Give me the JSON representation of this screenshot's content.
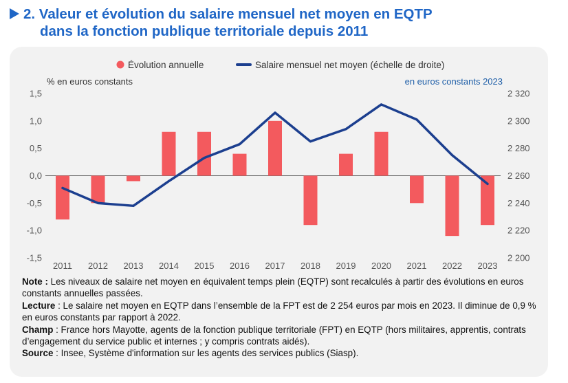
{
  "header": {
    "title_line1": "2. Valeur et évolution du salaire mensuel net moyen en EQTP",
    "title_line2": "dans la fonction publique territoriale depuis 2011"
  },
  "notes": {
    "note_label": "Note :",
    "note_text": " Les niveaux de salaire net moyen en équivalent temps plein (EQTP) sont recalculés à partir des évolutions en euros constants annuelles passées.",
    "lecture_label": "Lecture",
    "lecture_text": " : Le salaire net moyen en EQTP dans l’ensemble de la FPT est de 2 254 euros par mois en 2023. Il diminue de 0,9 % en euros constants par rapport à 2022.",
    "champ_label": "Champ",
    "champ_text": " : France hors Mayotte, agents de la fonction publique territoriale (FPT) en EQTP (hors militaires, apprentis, contrats d’engagement du service public et internes ; y compris contrats aidés).",
    "source_label": "Source",
    "source_text": " : Insee, Système d'information sur les agents des services publics (Siasp)."
  },
  "chart_data": {
    "type": "bar",
    "categories": [
      "2011",
      "2012",
      "2013",
      "2014",
      "2015",
      "2016",
      "2017",
      "2018",
      "2019",
      "2020",
      "2021",
      "2022",
      "2023"
    ],
    "series": [
      {
        "name": "Évolution annuelle",
        "type": "bar",
        "axis": "left",
        "color": "#f35a5e",
        "values": [
          -0.8,
          -0.5,
          -0.1,
          0.8,
          0.8,
          0.4,
          1.0,
          -0.9,
          0.4,
          0.8,
          -0.5,
          -1.1,
          -0.9
        ]
      },
      {
        "name": "Salaire mensuel net moyen (échelle de droite)",
        "type": "line",
        "axis": "right",
        "color": "#1c3f8f",
        "values": [
          2251,
          2240,
          2238,
          2256,
          2273,
          2283,
          2306,
          2285,
          2294,
          2312,
          2301,
          2275,
          2254
        ]
      }
    ],
    "left_axis": {
      "label": "% en euros constants",
      "ylim": [
        -1.5,
        1.5
      ],
      "ticks": [
        -1.5,
        -1.0,
        -0.5,
        0.0,
        0.5,
        1.0,
        1.5
      ],
      "tick_labels": [
        "-1,5",
        "-1,0",
        "-0,5",
        "0,0",
        "0,5",
        "1,0",
        "1,5"
      ]
    },
    "right_axis": {
      "label": "en euros constants 2023",
      "ylim": [
        2200,
        2320
      ],
      "ticks": [
        2200,
        2220,
        2240,
        2260,
        2280,
        2300,
        2320
      ],
      "tick_labels": [
        "2 200",
        "2 220",
        "2 240",
        "2 260",
        "2 280",
        "2 300",
        "2 320"
      ]
    },
    "grid": false,
    "legend": "top"
  }
}
